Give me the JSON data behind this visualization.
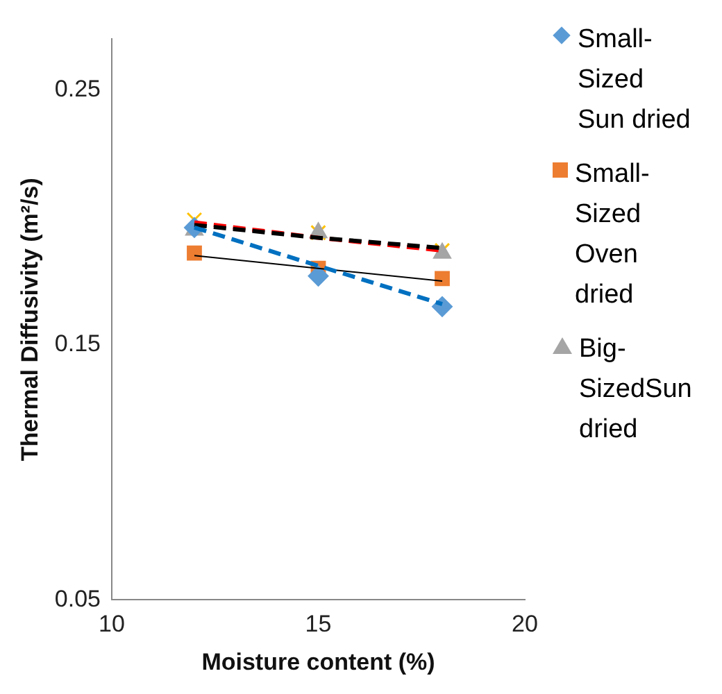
{
  "chart_data": {
    "type": "scatter",
    "xlabel": "Moisture content (%)",
    "ylabel": "Thermal Diffusivity (m²/s)",
    "x": [
      12,
      15,
      18
    ],
    "xlim": [
      10,
      20
    ],
    "xticks": [
      10,
      15,
      20
    ],
    "ylim": [
      0.05,
      0.27
    ],
    "yticks": [
      0.05,
      0.15,
      0.25
    ],
    "grid": false,
    "legend": "right",
    "series": [
      {
        "name": "Small-Sized Sun dried",
        "type": "scatter",
        "marker": "diamond",
        "color": "#5b9bd5",
        "values": [
          0.196,
          0.177,
          0.165
        ]
      },
      {
        "name": "Small-Sized Oven dried",
        "type": "scatter",
        "marker": "square",
        "color": "#ed7d31",
        "values": [
          0.186,
          0.18,
          0.176
        ]
      },
      {
        "name": "Big-SizedSun dried",
        "type": "scatter",
        "marker": "triangle",
        "color": "#a5a5a5",
        "values": [
          0.195,
          0.194,
          0.186
        ]
      },
      {
        "type": "scatter",
        "marker": "cross",
        "color": "#ffc000",
        "values": [
          0.199,
          0.194,
          0.187
        ]
      },
      {
        "type": "line",
        "line_style": "dashed",
        "color": "#0070c0",
        "values": [
          0.196,
          0.181,
          0.166
        ]
      },
      {
        "type": "line",
        "line_style": "solid",
        "color": "#000000",
        "values": [
          0.185,
          0.18,
          0.175
        ]
      },
      {
        "type": "line",
        "line_style": "dashed",
        "color": "#000000",
        "values": [
          0.197,
          0.192,
          0.188
        ]
      },
      {
        "type": "line",
        "line_style": "dashed",
        "color": "#ff0000",
        "values": [
          0.198,
          0.192,
          0.187
        ]
      }
    ]
  }
}
